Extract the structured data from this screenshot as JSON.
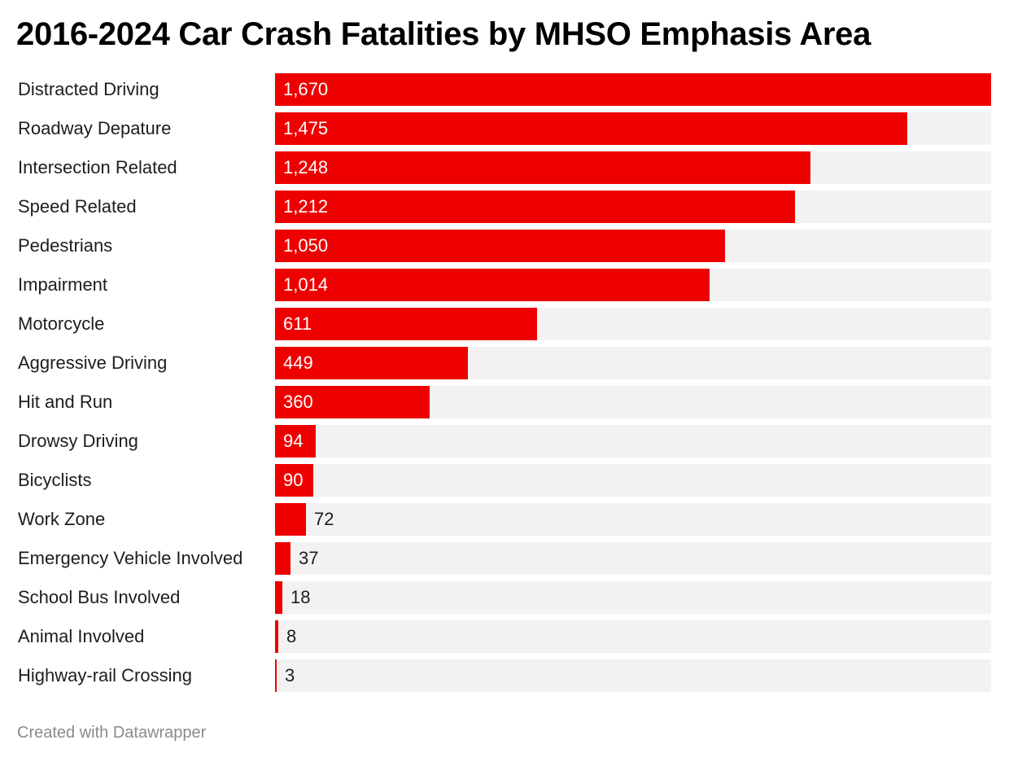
{
  "chart_data": {
    "type": "bar",
    "orientation": "horizontal",
    "title": "2016-2024 Car Crash Fatalities by MHSO Emphasis Area",
    "categories": [
      "Distracted Driving",
      "Roadway Depature",
      "Intersection Related",
      "Speed Related",
      "Pedestrians",
      "Impairment",
      "Motorcycle",
      "Aggressive Driving",
      "Hit and Run",
      "Drowsy Driving",
      "Bicyclists",
      "Work Zone",
      "Emergency Vehicle Involved",
      "School Bus Involved",
      "Animal Involved",
      "Highway-rail Crossing"
    ],
    "values": [
      1670,
      1475,
      1248,
      1212,
      1050,
      1014,
      611,
      449,
      360,
      94,
      90,
      72,
      37,
      18,
      8,
      3
    ],
    "value_labels": [
      "1,670",
      "1,475",
      "1,248",
      "1,212",
      "1,050",
      "1,014",
      "611",
      "449",
      "360",
      "94",
      "90",
      "72",
      "37",
      "18",
      "8",
      "3"
    ],
    "xlim": [
      0,
      1670
    ],
    "xlabel": "",
    "ylabel": "",
    "grid": false,
    "legend": "none",
    "bar_color": "#ee0000",
    "track_color": "#f2f2f2"
  },
  "footer": {
    "credit": "Created with Datawrapper"
  }
}
